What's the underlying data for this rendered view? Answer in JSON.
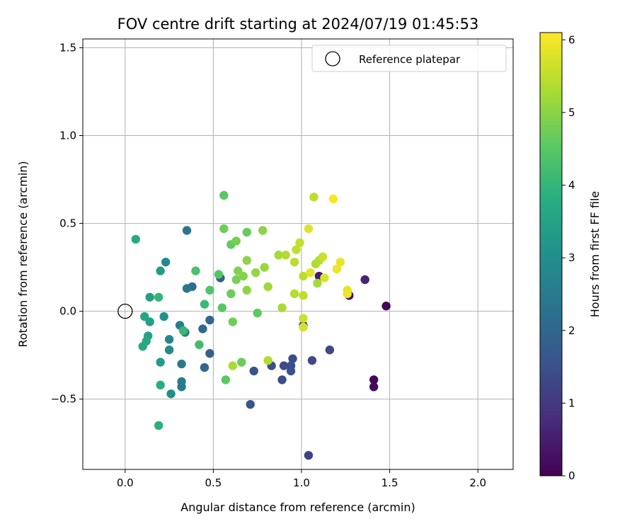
{
  "chart_data": {
    "type": "scatter",
    "title": "FOV centre drift starting at 2024/07/19 01:45:53",
    "xlabel": "Angular distance from reference (arcmin)",
    "ylabel": "Rotation from reference (arcmin)",
    "xlim": [
      -0.24,
      2.2
    ],
    "ylim": [
      -0.9,
      1.55
    ],
    "xticks": [
      0.0,
      0.5,
      1.0,
      1.5,
      2.0
    ],
    "xtick_labels": [
      "0.0",
      "0.5",
      "1.0",
      "1.5",
      "2.0"
    ],
    "yticks": [
      -0.5,
      0.0,
      0.5,
      1.0,
      1.5
    ],
    "ytick_labels": [
      "−0.5",
      "0.0",
      "0.5",
      "1.0",
      "1.5"
    ],
    "grid": true,
    "legend": {
      "placement": "top-right",
      "entries": [
        "Reference platepar"
      ]
    },
    "reference_point": {
      "x": 0.0,
      "y": 0.0
    },
    "colorbar": {
      "label": "Hours from first FF file",
      "range": [
        0,
        6.1
      ],
      "ticks": [
        0,
        1,
        2,
        3,
        4,
        5,
        6
      ],
      "tick_labels": [
        "0",
        "1",
        "2",
        "3",
        "4",
        "5",
        "6"
      ],
      "colormap": "viridis"
    },
    "points": [
      [
        1.48,
        0.03,
        0.05
      ],
      [
        1.41,
        -0.39,
        0.1
      ],
      [
        1.41,
        -0.43,
        0.15
      ],
      [
        1.27,
        0.09,
        0.3
      ],
      [
        1.1,
        0.2,
        0.45
      ],
      [
        1.36,
        0.18,
        0.6
      ],
      [
        1.01,
        -0.08,
        0.75
      ],
      [
        1.04,
        -0.82,
        1.2
      ],
      [
        1.16,
        -0.22,
        1.3
      ],
      [
        1.06,
        -0.28,
        1.35
      ],
      [
        0.95,
        -0.27,
        1.4
      ],
      [
        0.94,
        -0.31,
        1.45
      ],
      [
        0.94,
        -0.34,
        1.5
      ],
      [
        0.9,
        -0.31,
        1.4
      ],
      [
        0.89,
        -0.39,
        1.45
      ],
      [
        0.83,
        -0.31,
        1.5
      ],
      [
        0.73,
        -0.34,
        1.55
      ],
      [
        0.71,
        -0.53,
        1.6
      ],
      [
        0.54,
        0.19,
        1.8
      ],
      [
        0.48,
        -0.24,
        1.85
      ],
      [
        0.48,
        -0.05,
        2.0
      ],
      [
        0.45,
        -0.32,
        2.05
      ],
      [
        0.44,
        -0.1,
        2.1
      ],
      [
        0.38,
        0.14,
        2.2
      ],
      [
        0.35,
        0.46,
        2.3
      ],
      [
        0.35,
        0.13,
        2.35
      ],
      [
        0.34,
        -0.12,
        2.5
      ],
      [
        0.32,
        -0.3,
        2.4
      ],
      [
        0.32,
        -0.43,
        2.45
      ],
      [
        0.32,
        -0.4,
        2.55
      ],
      [
        0.31,
        -0.08,
        2.6
      ],
      [
        0.25,
        -0.16,
        2.75
      ],
      [
        0.25,
        -0.22,
        2.85
      ],
      [
        0.23,
        0.28,
        2.9
      ],
      [
        0.26,
        -0.47,
        3.05
      ],
      [
        0.22,
        -0.03,
        3.1
      ],
      [
        0.2,
        0.23,
        3.3
      ],
      [
        0.2,
        -0.29,
        3.35
      ],
      [
        0.14,
        0.08,
        3.4
      ],
      [
        0.14,
        -0.06,
        3.45
      ],
      [
        0.13,
        -0.14,
        3.5
      ],
      [
        0.11,
        -0.03,
        3.55
      ],
      [
        0.12,
        -0.17,
        3.6
      ],
      [
        0.1,
        -0.2,
        3.65
      ],
      [
        0.06,
        0.41,
        3.7
      ],
      [
        0.2,
        -0.42,
        3.8
      ],
      [
        0.19,
        -0.65,
        3.85
      ],
      [
        0.19,
        0.08,
        4.0
      ],
      [
        0.33,
        -0.11,
        4.05
      ],
      [
        0.45,
        0.04,
        4.1
      ],
      [
        0.42,
        -0.19,
        4.2
      ],
      [
        0.4,
        0.23,
        4.3
      ],
      [
        0.48,
        0.12,
        4.4
      ],
      [
        0.53,
        0.21,
        4.45
      ],
      [
        0.55,
        0.02,
        4.5
      ],
      [
        0.57,
        -0.39,
        4.55
      ],
      [
        0.6,
        0.38,
        4.6
      ],
      [
        0.6,
        0.1,
        4.7
      ],
      [
        0.61,
        -0.06,
        4.75
      ],
      [
        0.63,
        0.4,
        4.8
      ],
      [
        0.63,
        0.18,
        4.85
      ],
      [
        0.64,
        0.23,
        4.9
      ],
      [
        0.66,
        -0.29,
        4.7
      ],
      [
        0.67,
        0.2,
        4.95
      ],
      [
        0.69,
        0.29,
        5.0
      ],
      [
        0.69,
        0.12,
        5.05
      ],
      [
        0.69,
        0.45,
        4.65
      ],
      [
        0.74,
        0.22,
        5.1
      ],
      [
        0.75,
        -0.01,
        4.55
      ],
      [
        0.78,
        0.46,
        5.0
      ],
      [
        0.79,
        0.25,
        5.15
      ],
      [
        0.81,
        0.14,
        5.2
      ],
      [
        0.56,
        0.47,
        4.75
      ],
      [
        0.56,
        0.66,
        4.5
      ],
      [
        0.61,
        -0.31,
        5.3
      ],
      [
        0.81,
        -0.28,
        5.4
      ],
      [
        0.87,
        0.32,
        5.25
      ],
      [
        0.89,
        0.02,
        5.3
      ],
      [
        0.91,
        0.32,
        5.35
      ],
      [
        0.96,
        0.1,
        5.4
      ],
      [
        0.96,
        0.28,
        5.45
      ],
      [
        0.97,
        0.35,
        5.5
      ],
      [
        0.99,
        0.39,
        5.55
      ],
      [
        1.01,
        -0.04,
        5.6
      ],
      [
        1.01,
        0.09,
        5.5
      ],
      [
        1.01,
        0.2,
        5.45
      ],
      [
        1.01,
        -0.09,
        5.7
      ],
      [
        1.04,
        0.47,
        5.8
      ],
      [
        1.05,
        0.22,
        5.85
      ],
      [
        1.07,
        0.65,
        5.5
      ],
      [
        1.08,
        0.27,
        5.35
      ],
      [
        1.09,
        0.16,
        5.25
      ],
      [
        1.1,
        0.29,
        5.4
      ],
      [
        1.12,
        0.31,
        5.6
      ],
      [
        1.13,
        0.19,
        5.75
      ],
      [
        1.18,
        0.64,
        6.05
      ],
      [
        1.2,
        0.24,
        5.95
      ],
      [
        1.22,
        0.28,
        5.9
      ],
      [
        1.26,
        0.12,
        5.85
      ],
      [
        1.26,
        0.1,
        5.95
      ]
    ]
  }
}
